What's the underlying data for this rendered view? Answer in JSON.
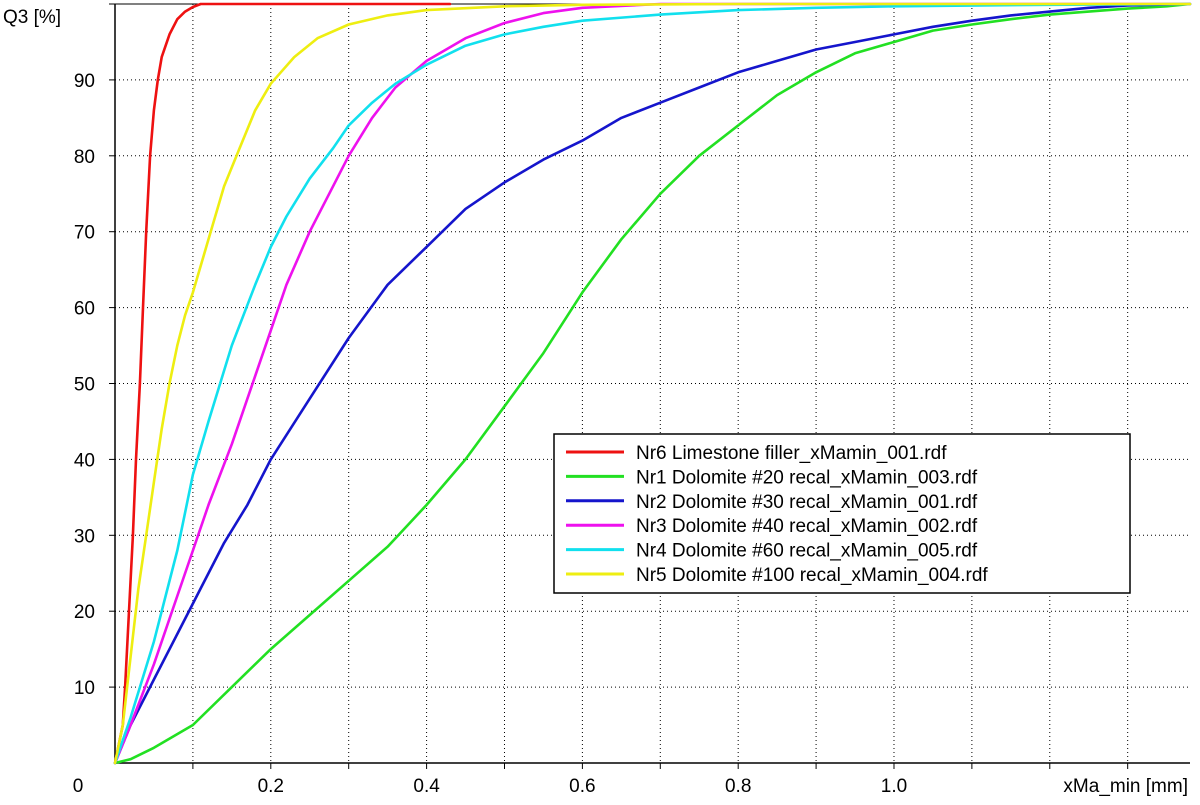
{
  "chart_data": {
    "type": "line",
    "ylabel": "Q3 [%]",
    "xlabel": "xMa_min [mm]",
    "origin_label": "0",
    "xlim": [
      0,
      1.38
    ],
    "ylim": [
      0,
      100
    ],
    "x_ticks": [
      {
        "value": 0.2,
        "label": "0.2"
      },
      {
        "value": 0.4,
        "label": "0.4"
      },
      {
        "value": 0.6,
        "label": "0.6"
      },
      {
        "value": 0.8,
        "label": "0.8"
      },
      {
        "value": 1.0,
        "label": "1.0"
      }
    ],
    "y_ticks": [
      {
        "value": 10,
        "label": "10"
      },
      {
        "value": 20,
        "label": "20"
      },
      {
        "value": 30,
        "label": "30"
      },
      {
        "value": 40,
        "label": "40"
      },
      {
        "value": 50,
        "label": "50"
      },
      {
        "value": 60,
        "label": "60"
      },
      {
        "value": 70,
        "label": "70"
      },
      {
        "value": 80,
        "label": "80"
      },
      {
        "value": 90,
        "label": "90"
      }
    ],
    "grid": true,
    "legend_position": "center-right",
    "series": [
      {
        "name": "Nr6 Limestone filler_xMamin_001.rdf",
        "color": "#ee1111",
        "x": [
          0,
          0.01,
          0.013,
          0.018,
          0.023,
          0.027,
          0.032,
          0.036,
          0.04,
          0.045,
          0.05,
          0.055,
          0.06,
          0.07,
          0.08,
          0.09,
          0.1,
          0.11,
          0.2,
          0.3,
          0.43
        ],
        "y": [
          0,
          5,
          10,
          20,
          30,
          40,
          50,
          60,
          70,
          80,
          86,
          90,
          93,
          96,
          98,
          99,
          99.6,
          100,
          100,
          100,
          100
        ]
      },
      {
        "name": "Nr1 Dolomite #20 recal_xMamin_003.rdf",
        "color": "#22e022",
        "x": [
          0,
          0.02,
          0.05,
          0.1,
          0.15,
          0.2,
          0.25,
          0.3,
          0.35,
          0.4,
          0.45,
          0.5,
          0.55,
          0.6,
          0.65,
          0.7,
          0.75,
          0.8,
          0.85,
          0.9,
          0.95,
          1.0,
          1.05,
          1.1,
          1.15,
          1.2,
          1.25,
          1.3,
          1.35,
          1.38
        ],
        "y": [
          0,
          0.5,
          2,
          5,
          10,
          15,
          19.5,
          24,
          28.5,
          34,
          40,
          47,
          54,
          62,
          69,
          75,
          80,
          84,
          88,
          91,
          93.5,
          95,
          96.5,
          97.3,
          98,
          98.6,
          99,
          99.4,
          99.7,
          100
        ]
      },
      {
        "name": "Nr2 Dolomite #30 recal_xMamin_001.rdf",
        "color": "#1515cc",
        "x": [
          0,
          0.02,
          0.05,
          0.08,
          0.11,
          0.14,
          0.17,
          0.2,
          0.25,
          0.3,
          0.35,
          0.4,
          0.45,
          0.5,
          0.55,
          0.6,
          0.65,
          0.7,
          0.75,
          0.8,
          0.85,
          0.9,
          0.95,
          1.0,
          1.05,
          1.1,
          1.15,
          1.2,
          1.25,
          1.3,
          1.38
        ],
        "y": [
          0,
          5,
          11,
          17,
          23,
          29,
          34,
          40,
          48,
          56,
          63,
          68,
          73,
          76.5,
          79.5,
          82,
          85,
          87,
          89,
          91,
          92.5,
          94,
          95,
          96,
          97,
          97.8,
          98.5,
          99,
          99.5,
          99.8,
          100
        ]
      },
      {
        "name": "Nr3 Dolomite #40 recal_xMamin_002.rdf",
        "color": "#ee11ee",
        "x": [
          0,
          0.02,
          0.05,
          0.08,
          0.1,
          0.12,
          0.15,
          0.18,
          0.2,
          0.22,
          0.25,
          0.28,
          0.3,
          0.33,
          0.36,
          0.4,
          0.45,
          0.5,
          0.55,
          0.6,
          0.7,
          0.8,
          1.0,
          1.2,
          1.38
        ],
        "y": [
          0,
          5,
          13,
          22,
          28,
          34,
          42,
          51,
          57,
          63,
          70,
          76,
          80,
          85,
          89,
          92.5,
          95.5,
          97.5,
          98.8,
          99.5,
          100,
          100,
          100,
          100,
          100
        ]
      },
      {
        "name": "Nr4 Dolomite #60 recal_xMamin_005.rdf",
        "color": "#11e0ee",
        "x": [
          0,
          0.02,
          0.05,
          0.08,
          0.1,
          0.12,
          0.15,
          0.18,
          0.2,
          0.22,
          0.25,
          0.28,
          0.3,
          0.33,
          0.36,
          0.4,
          0.45,
          0.5,
          0.55,
          0.6,
          0.7,
          0.8,
          0.9,
          1.0,
          1.2,
          1.38
        ],
        "y": [
          0,
          6,
          16,
          28,
          38,
          45,
          55,
          63,
          68,
          72,
          77,
          81,
          84,
          87,
          89.5,
          92,
          94.5,
          96,
          97,
          97.8,
          98.6,
          99.2,
          99.5,
          99.7,
          99.9,
          100
        ]
      },
      {
        "name": "Nr5 Dolomite #100 recal_xMamin_004.rdf",
        "color": "#eeee11",
        "x": [
          0,
          0.01,
          0.02,
          0.03,
          0.04,
          0.05,
          0.06,
          0.07,
          0.08,
          0.09,
          0.1,
          0.12,
          0.14,
          0.16,
          0.18,
          0.2,
          0.23,
          0.26,
          0.3,
          0.35,
          0.4,
          0.5,
          0.6,
          0.8,
          1.0,
          1.2,
          1.38
        ],
        "y": [
          0,
          5,
          14,
          23,
          30,
          37,
          44,
          50,
          55,
          59,
          62,
          69,
          76,
          81,
          86,
          89.5,
          93,
          95.5,
          97.3,
          98.5,
          99.2,
          99.7,
          99.9,
          100,
          100,
          100,
          100
        ]
      }
    ]
  }
}
